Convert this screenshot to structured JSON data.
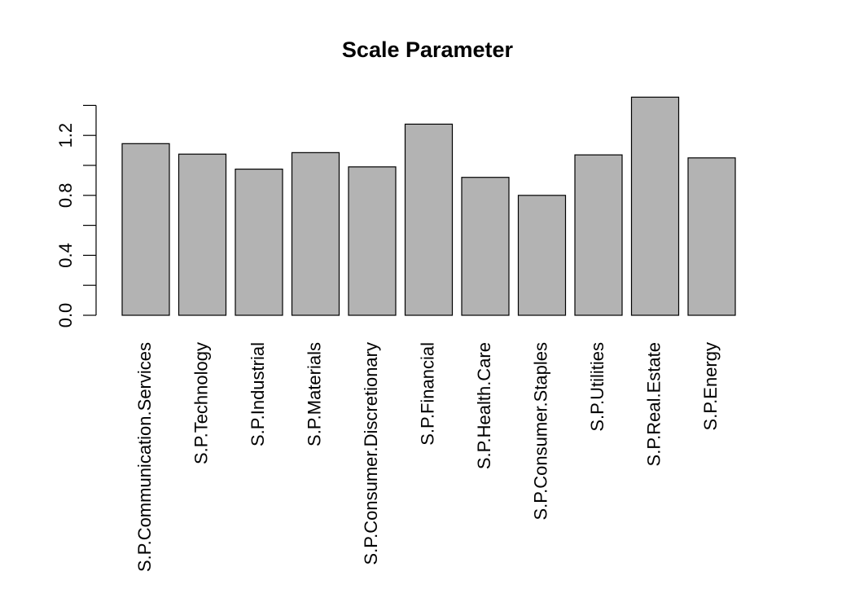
{
  "chart_data": {
    "type": "bar",
    "title": "Scale Parameter",
    "xlabel": "",
    "ylabel": "",
    "categories": [
      "S.P.Communication.Services",
      "S.P.Technology",
      "S.P.Industrial",
      "S.P.Materials",
      "S.P.Consumer.Discretionary",
      "S.P.Financial",
      "S.P.Health.Care",
      "S.P.Consumer.Staples",
      "S.P.Utilities",
      "S.P.Real.Estate",
      "S.P.Energy"
    ],
    "values": [
      1.145,
      1.075,
      0.975,
      1.085,
      0.99,
      1.275,
      0.92,
      0.8,
      1.07,
      1.455,
      1.05
    ],
    "ylim": [
      0,
      1.4
    ],
    "yticks": [
      0.0,
      0.2,
      0.4,
      0.6,
      0.8,
      1.0,
      1.2,
      1.4
    ],
    "ytick_labels": [
      "0.0",
      "",
      "0.4",
      "",
      "0.8",
      "",
      "1.2",
      ""
    ],
    "grid": false,
    "bar_color": "#b3b3b3",
    "bar_edge_color": "#000000"
  }
}
